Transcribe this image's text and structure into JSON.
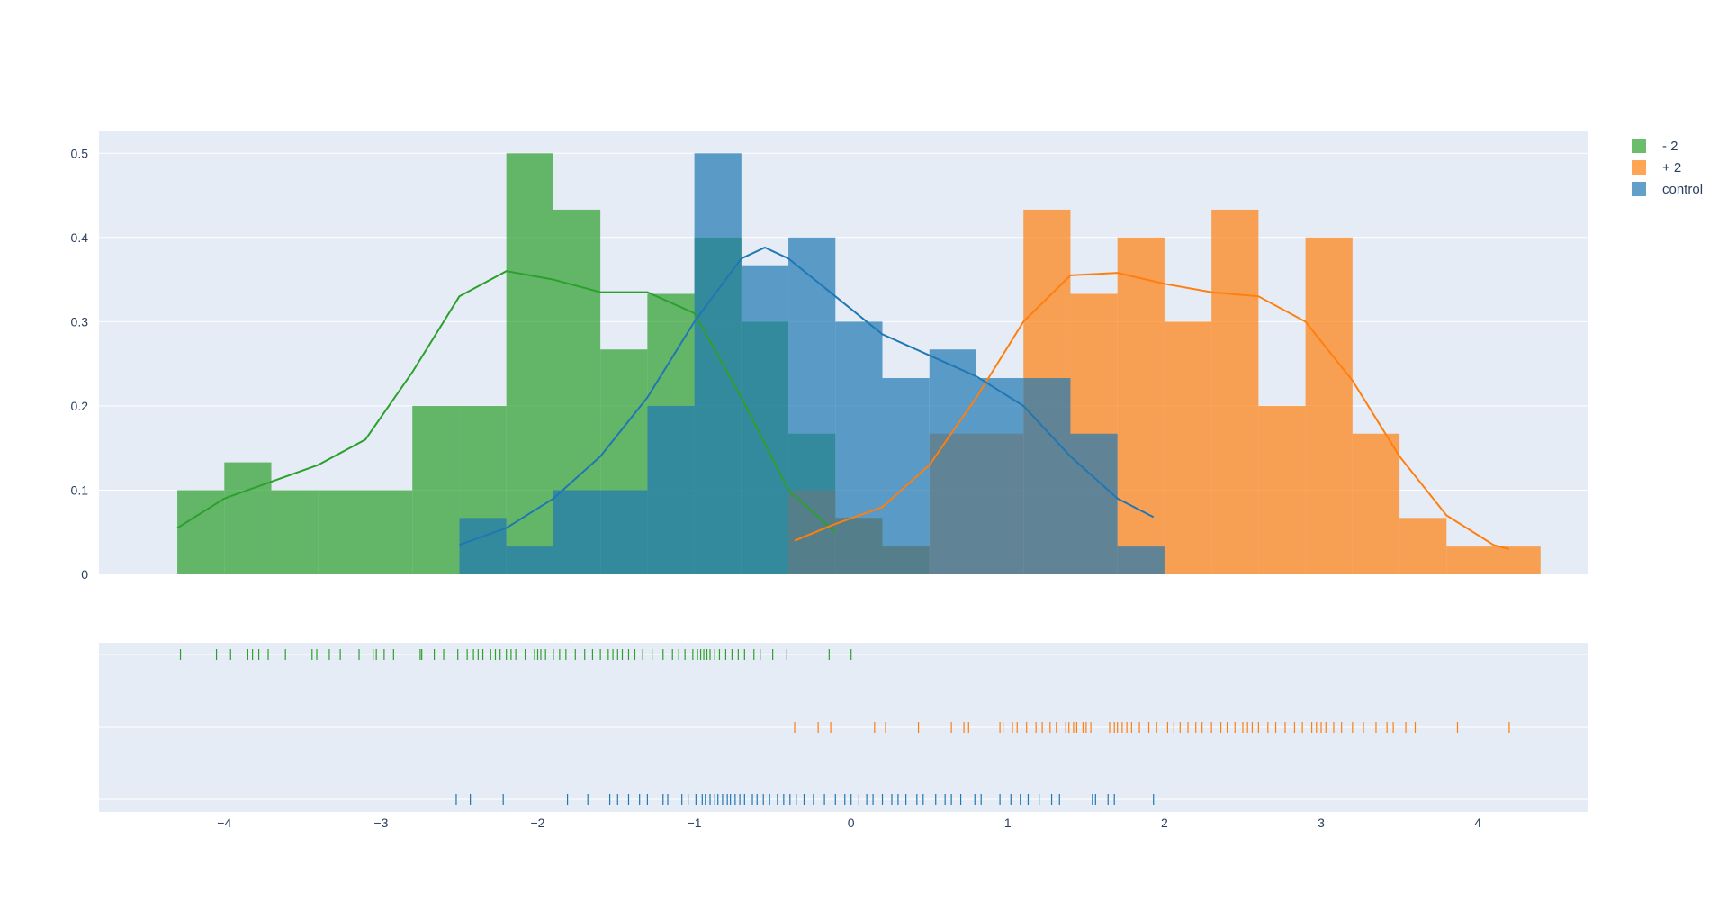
{
  "chart_data": {
    "type": "histogram",
    "x_ticks": [
      -4,
      -3,
      -2,
      -1,
      0,
      1,
      2,
      3,
      4
    ],
    "xlim": [
      -4.8,
      4.7
    ],
    "y_ticks": [
      "0",
      "0.1",
      "0.2",
      "0.3",
      "0.4",
      "0.5"
    ],
    "ylim": [
      0,
      0.527
    ],
    "grid": true,
    "legend_position": "top-right",
    "series": [
      {
        "name": "- 2",
        "color": "#2ca02c",
        "bin_width": 0.3,
        "bins": [
          {
            "x0": -4.3,
            "y": 0.1
          },
          {
            "x0": -4.0,
            "y": 0.133
          },
          {
            "x0": -3.7,
            "y": 0.1
          },
          {
            "x0": -3.4,
            "y": 0.1
          },
          {
            "x0": -3.1,
            "y": 0.1
          },
          {
            "x0": -2.8,
            "y": 0.2
          },
          {
            "x0": -2.5,
            "y": 0.2
          },
          {
            "x0": -2.2,
            "y": 0.5
          },
          {
            "x0": -1.9,
            "y": 0.433
          },
          {
            "x0": -1.6,
            "y": 0.267
          },
          {
            "x0": -1.3,
            "y": 0.333
          },
          {
            "x0": -1.0,
            "y": 0.4
          },
          {
            "x0": -0.7,
            "y": 0.3
          },
          {
            "x0": -0.4,
            "y": 0.167
          },
          {
            "x0": -0.1,
            "y": 0.067
          },
          {
            "x0": 0.2,
            "y": 0.033
          }
        ],
        "kde": [
          [
            -4.3,
            0.055
          ],
          [
            -4.0,
            0.09
          ],
          [
            -3.7,
            0.11
          ],
          [
            -3.4,
            0.13
          ],
          [
            -3.1,
            0.16
          ],
          [
            -2.8,
            0.24
          ],
          [
            -2.5,
            0.33
          ],
          [
            -2.2,
            0.36
          ],
          [
            -1.9,
            0.35
          ],
          [
            -1.6,
            0.335
          ],
          [
            -1.3,
            0.335
          ],
          [
            -1.0,
            0.31
          ],
          [
            -0.7,
            0.21
          ],
          [
            -0.4,
            0.1
          ],
          [
            -0.1,
            0.05
          ]
        ],
        "rug": [
          -4.28,
          -4.05,
          -3.96,
          -3.85,
          -3.82,
          -3.78,
          -3.72,
          -3.61,
          -3.44,
          -3.41,
          -3.33,
          -3.26,
          -3.14,
          -3.05,
          -3.03,
          -2.98,
          -2.92,
          -2.75,
          -2.74,
          -2.66,
          -2.6,
          -2.51,
          -2.45,
          -2.41,
          -2.38,
          -2.35,
          -2.3,
          -2.27,
          -2.24,
          -2.2,
          -2.17,
          -2.14,
          -2.08,
          -2.02,
          -2.0,
          -1.98,
          -1.95,
          -1.9,
          -1.86,
          -1.82,
          -1.76,
          -1.7,
          -1.65,
          -1.6,
          -1.55,
          -1.52,
          -1.49,
          -1.46,
          -1.42,
          -1.38,
          -1.33,
          -1.27,
          -1.2,
          -1.14,
          -1.1,
          -1.06,
          -1.01,
          -0.98,
          -0.96,
          -0.94,
          -0.92,
          -0.9,
          -0.87,
          -0.84,
          -0.8,
          -0.76,
          -0.72,
          -0.68,
          -0.62,
          -0.58,
          -0.5,
          -0.41,
          -0.14,
          0.0
        ]
      },
      {
        "name": "+ 2",
        "color": "#ff7f0e",
        "bin_width": 0.3,
        "bins": [
          {
            "x0": -0.4,
            "y": 0.1
          },
          {
            "x0": -0.1,
            "y": 0.067
          },
          {
            "x0": 0.2,
            "y": 0.033
          },
          {
            "x0": 0.5,
            "y": 0.167
          },
          {
            "x0": 0.8,
            "y": 0.167
          },
          {
            "x0": 1.1,
            "y": 0.433
          },
          {
            "x0": 1.4,
            "y": 0.333
          },
          {
            "x0": 1.7,
            "y": 0.4
          },
          {
            "x0": 2.0,
            "y": 0.3
          },
          {
            "x0": 2.3,
            "y": 0.433
          },
          {
            "x0": 2.6,
            "y": 0.2
          },
          {
            "x0": 2.9,
            "y": 0.4
          },
          {
            "x0": 3.2,
            "y": 0.167
          },
          {
            "x0": 3.5,
            "y": 0.067
          },
          {
            "x0": 3.8,
            "y": 0.033
          },
          {
            "x0": 4.1,
            "y": 0.033
          }
        ],
        "kde": [
          [
            -0.36,
            0.04
          ],
          [
            -0.1,
            0.06
          ],
          [
            0.2,
            0.08
          ],
          [
            0.5,
            0.13
          ],
          [
            0.8,
            0.21
          ],
          [
            1.1,
            0.3
          ],
          [
            1.4,
            0.355
          ],
          [
            1.7,
            0.358
          ],
          [
            2.0,
            0.345
          ],
          [
            2.3,
            0.335
          ],
          [
            2.6,
            0.33
          ],
          [
            2.9,
            0.3
          ],
          [
            3.2,
            0.23
          ],
          [
            3.5,
            0.14
          ],
          [
            3.8,
            0.07
          ],
          [
            4.1,
            0.035
          ],
          [
            4.2,
            0.03
          ]
        ],
        "rug": [
          -0.36,
          -0.21,
          -0.13,
          0.15,
          0.22,
          0.43,
          0.64,
          0.72,
          0.75,
          0.95,
          0.97,
          1.03,
          1.06,
          1.12,
          1.18,
          1.22,
          1.27,
          1.31,
          1.37,
          1.39,
          1.42,
          1.44,
          1.48,
          1.5,
          1.53,
          1.65,
          1.68,
          1.7,
          1.73,
          1.76,
          1.79,
          1.84,
          1.9,
          1.95,
          2.02,
          2.06,
          2.1,
          2.15,
          2.2,
          2.24,
          2.3,
          2.36,
          2.4,
          2.45,
          2.5,
          2.53,
          2.56,
          2.6,
          2.66,
          2.71,
          2.77,
          2.83,
          2.88,
          2.94,
          2.97,
          3.0,
          3.03,
          3.08,
          3.13,
          3.2,
          3.27,
          3.35,
          3.42,
          3.46,
          3.54,
          3.6,
          3.87,
          4.2
        ]
      },
      {
        "name": "control",
        "color": "#1f77b4",
        "bin_width": 0.3,
        "bins": [
          {
            "x0": -2.5,
            "y": 0.067
          },
          {
            "x0": -2.2,
            "y": 0.033
          },
          {
            "x0": -1.9,
            "y": 0.1
          },
          {
            "x0": -1.6,
            "y": 0.1
          },
          {
            "x0": -1.3,
            "y": 0.2
          },
          {
            "x0": -1.0,
            "y": 0.5
          },
          {
            "x0": -0.7,
            "y": 0.367
          },
          {
            "x0": -0.4,
            "y": 0.4
          },
          {
            "x0": -0.1,
            "y": 0.3
          },
          {
            "x0": 0.2,
            "y": 0.233
          },
          {
            "x0": 0.5,
            "y": 0.267
          },
          {
            "x0": 0.8,
            "y": 0.233
          },
          {
            "x0": 1.1,
            "y": 0.233
          },
          {
            "x0": 1.4,
            "y": 0.167
          },
          {
            "x0": 1.7,
            "y": 0.033
          }
        ],
        "kde": [
          [
            -2.5,
            0.035
          ],
          [
            -2.2,
            0.055
          ],
          [
            -1.9,
            0.09
          ],
          [
            -1.6,
            0.14
          ],
          [
            -1.3,
            0.21
          ],
          [
            -1.0,
            0.3
          ],
          [
            -0.7,
            0.375
          ],
          [
            -0.55,
            0.388
          ],
          [
            -0.4,
            0.375
          ],
          [
            -0.1,
            0.33
          ],
          [
            0.2,
            0.285
          ],
          [
            0.5,
            0.26
          ],
          [
            0.8,
            0.235
          ],
          [
            1.1,
            0.2
          ],
          [
            1.4,
            0.14
          ],
          [
            1.7,
            0.09
          ],
          [
            1.93,
            0.068
          ]
        ],
        "rug": [
          -2.52,
          -2.43,
          -2.22,
          -1.81,
          -1.68,
          -1.54,
          -1.49,
          -1.42,
          -1.35,
          -1.3,
          -1.2,
          -1.17,
          -1.08,
          -1.04,
          -0.99,
          -0.95,
          -0.93,
          -0.9,
          -0.87,
          -0.85,
          -0.82,
          -0.79,
          -0.77,
          -0.74,
          -0.71,
          -0.68,
          -0.63,
          -0.6,
          -0.56,
          -0.52,
          -0.47,
          -0.43,
          -0.39,
          -0.35,
          -0.3,
          -0.24,
          -0.17,
          -0.1,
          -0.04,
          0.0,
          0.05,
          0.1,
          0.14,
          0.2,
          0.26,
          0.3,
          0.35,
          0.42,
          0.46,
          0.54,
          0.6,
          0.64,
          0.7,
          0.79,
          0.83,
          0.95,
          1.02,
          1.08,
          1.13,
          1.2,
          1.28,
          1.33,
          1.54,
          1.56,
          1.64,
          1.68,
          1.93
        ]
      }
    ]
  }
}
